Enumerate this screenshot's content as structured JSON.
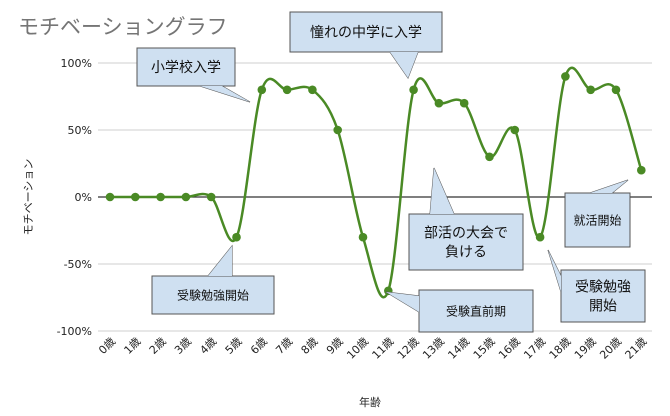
{
  "chart_data": {
    "type": "line",
    "title": "モチベーショングラフ",
    "xlabel": "年齢",
    "ylabel": "モチベーション",
    "categories": [
      "0歳",
      "1歳",
      "2歳",
      "3歳",
      "4歳",
      "5歳",
      "6歳",
      "7歳",
      "8歳",
      "9歳",
      "10歳",
      "11歳",
      "12歳",
      "13歳",
      "14歳",
      "15歳",
      "16歳",
      "17歳",
      "18歳",
      "19歳",
      "20歳",
      "21歳"
    ],
    "y_ticks": [
      "100%",
      "50%",
      "0%",
      "-50%",
      "-100%"
    ],
    "ylim": [
      -100,
      100
    ],
    "series": [
      {
        "values": [
          0,
          0,
          0,
          0,
          0,
          -30,
          80,
          80,
          80,
          50,
          -30,
          -70,
          80,
          70,
          70,
          30,
          50,
          -30,
          90,
          80,
          80,
          20
        ]
      }
    ],
    "line_color": "#4a8a25",
    "grid": true,
    "callouts": [
      {
        "id": "shogakko",
        "text": [
          "小学校入学"
        ]
      },
      {
        "id": "akogare",
        "text": [
          "憧れの中学に入学"
        ]
      },
      {
        "id": "juken1",
        "text": [
          "受験勉強開始"
        ]
      },
      {
        "id": "chokuzen",
        "text": [
          "受験直前期"
        ]
      },
      {
        "id": "bukatsu",
        "text": [
          "部活の大会で",
          "負ける"
        ]
      },
      {
        "id": "shukatsu",
        "text": [
          "就活開始"
        ]
      },
      {
        "id": "juken2",
        "text": [
          "受験勉強",
          "開始"
        ]
      }
    ]
  }
}
